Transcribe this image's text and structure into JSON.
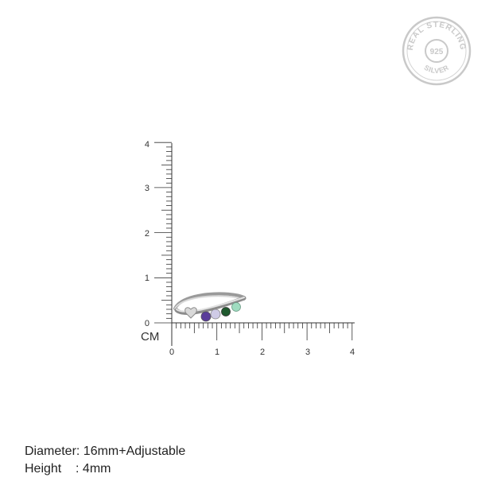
{
  "seal": {
    "top_text": "REAL STERLING",
    "number": "925",
    "bottom_text": "SILVER",
    "color": "#c9c9c9"
  },
  "ruler": {
    "unit": "CM",
    "vertical_ticks": [
      "0",
      "1",
      "2",
      "3",
      "4"
    ],
    "horizontal_ticks": [
      "0",
      "1",
      "2",
      "3",
      "4"
    ],
    "color": "#333333"
  },
  "ring": {
    "band_color": "#c8c8c8",
    "stones": [
      {
        "name": "purple-stone",
        "color": "#5a3d9a"
      },
      {
        "name": "lavender-stone",
        "color": "#cfcbe6"
      },
      {
        "name": "dark-green-stone",
        "color": "#1f5a2e"
      },
      {
        "name": "mint-stone",
        "color": "#9fdcc0"
      }
    ]
  },
  "specs": {
    "diameter": "Diameter: 16mm+Adjustable",
    "height": "Height    : 4mm"
  }
}
